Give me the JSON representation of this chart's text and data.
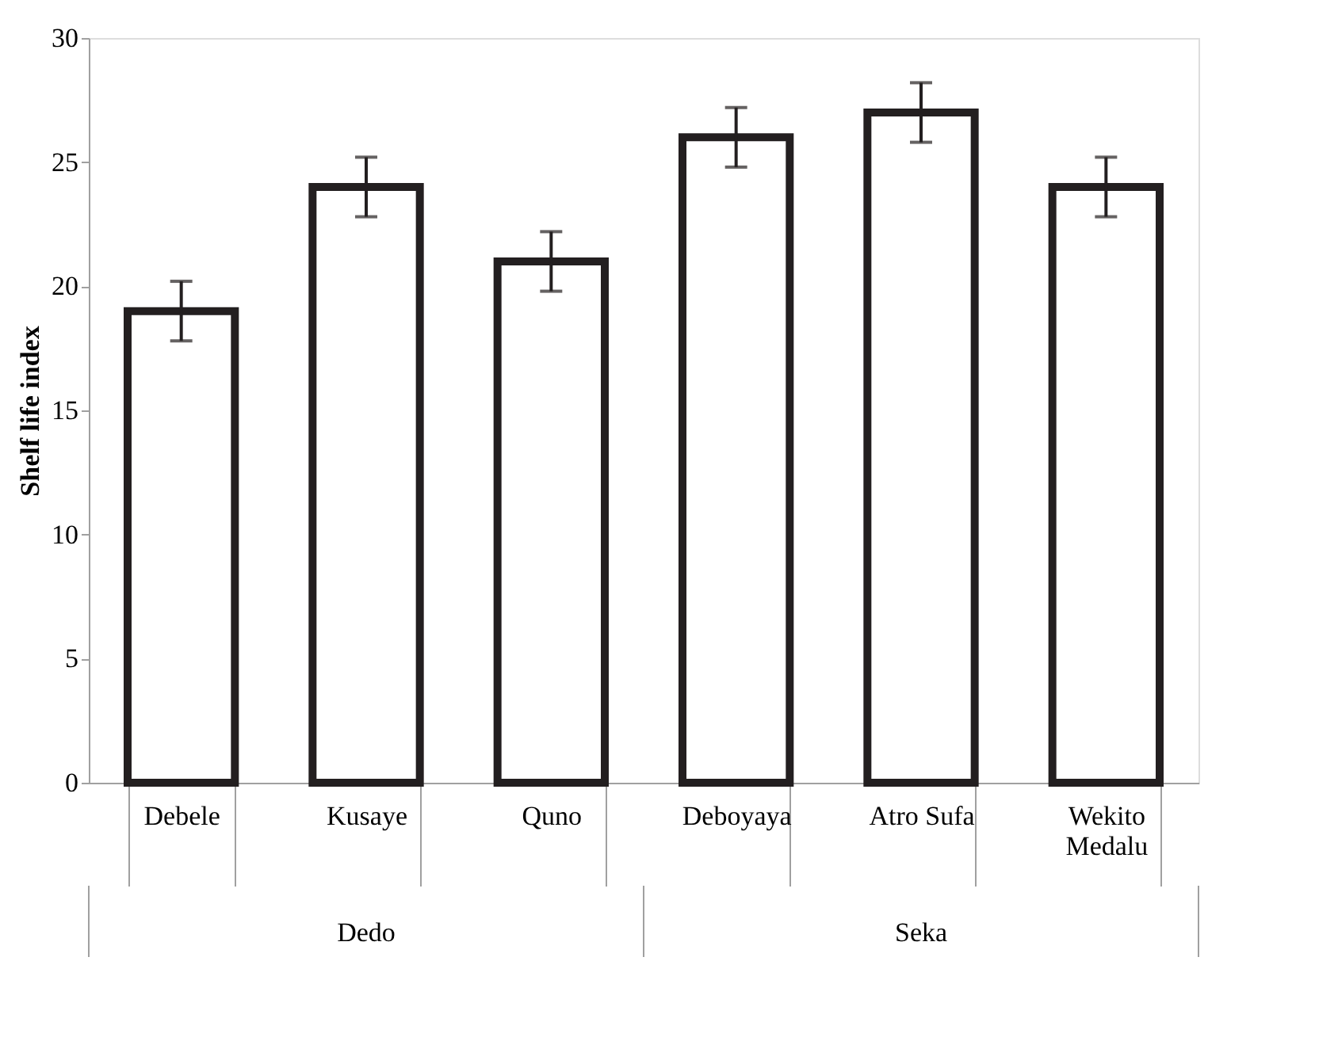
{
  "chart_data": {
    "type": "bar",
    "ylabel": "Shelf life index",
    "categories": [
      "Debele",
      "Kusaye",
      "Quno",
      "Deboyaya",
      "Atro Sufa",
      "Wekito Medalu"
    ],
    "values": [
      19,
      24,
      21,
      26,
      27,
      24
    ],
    "errors": [
      1.2,
      1.2,
      1.2,
      1.2,
      1.2,
      1.2
    ],
    "color": "#ffffff",
    "ylim": [
      0,
      30
    ],
    "yticks": [
      0,
      5,
      10,
      15,
      20,
      25,
      30
    ],
    "grid": false,
    "annotations": [
      "Dedo",
      "Seka"
    ]
  }
}
